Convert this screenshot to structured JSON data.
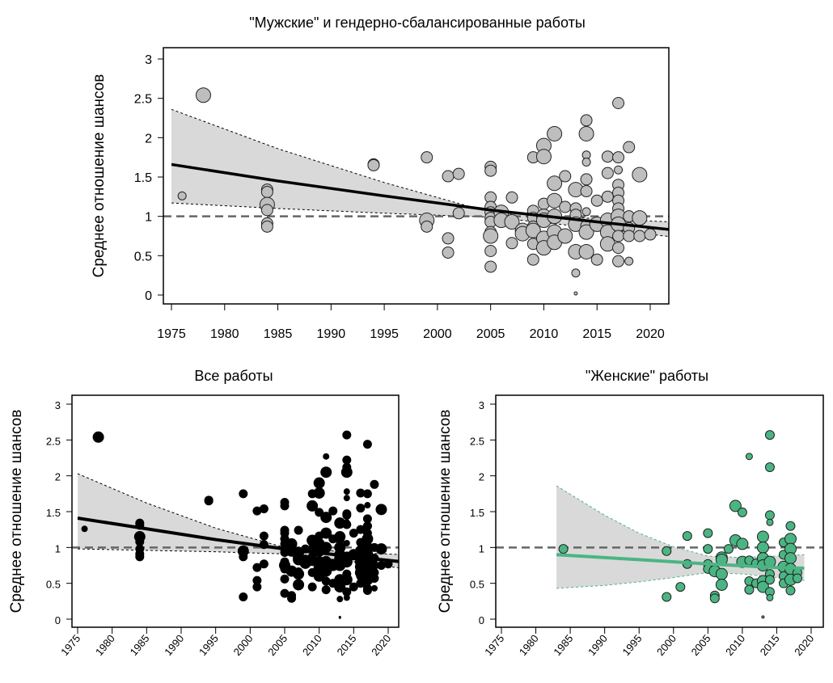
{
  "chart_data": [
    {
      "id": "male",
      "type": "scatter",
      "title": "\"Мужские\" и гендерно-сбалансированные работы",
      "xlabel": "",
      "ylabel": "Среднее отношение шансов",
      "xlim": [
        1974,
        2022
      ],
      "ylim": [
        -0.1,
        3.1
      ],
      "xticks": [
        "1975",
        "1980",
        "1985",
        "1990",
        "1995",
        "2000",
        "2005",
        "2010",
        "2015",
        "2020"
      ],
      "yticks": [
        "0",
        "0.5",
        "1",
        "1.5",
        "2",
        "2.5",
        "3"
      ],
      "reference_line": 1,
      "point_color": "#bebebe",
      "line_color": "#000000",
      "band_color": "#d9d9d9",
      "regression": {
        "x": [
          1975,
          1985,
          1995,
          2005,
          2015,
          2022
        ],
        "y": [
          1.66,
          1.45,
          1.26,
          1.08,
          0.93,
          0.83
        ]
      },
      "ci_upper": {
        "x": [
          1975,
          1985,
          1995,
          2005,
          2015,
          2022
        ],
        "y": [
          2.36,
          1.86,
          1.43,
          1.05,
          0.97,
          0.93
        ]
      },
      "ci_lower": {
        "x": [
          1975,
          1985,
          1995,
          2005,
          2015,
          2022
        ],
        "y": [
          1.17,
          1.1,
          1.04,
          0.99,
          0.85,
          0.74
        ]
      },
      "points": [
        [
          1976,
          1.26,
          1
        ],
        [
          1978,
          2.54,
          3
        ],
        [
          1984,
          1.34,
          2
        ],
        [
          1984,
          1.31,
          2
        ],
        [
          1984,
          1.15,
          3
        ],
        [
          1984,
          1.08,
          2
        ],
        [
          1984,
          0.91,
          2
        ],
        [
          1984,
          0.87,
          2
        ],
        [
          1994,
          1.66,
          2
        ],
        [
          1994,
          1.65,
          2
        ],
        [
          1999,
          1.75,
          2
        ],
        [
          1999,
          0.95,
          3
        ],
        [
          1999,
          0.87,
          2
        ],
        [
          2001,
          1.51,
          2
        ],
        [
          2001,
          0.72,
          2
        ],
        [
          2001,
          0.54,
          2
        ],
        [
          2002,
          1.54,
          2
        ],
        [
          2002,
          1.04,
          2
        ],
        [
          2005,
          1.63,
          2
        ],
        [
          2005,
          1.58,
          2
        ],
        [
          2005,
          1.24,
          2
        ],
        [
          2005,
          1.12,
          2
        ],
        [
          2005,
          1.05,
          2
        ],
        [
          2005,
          0.98,
          2
        ],
        [
          2005,
          0.93,
          2
        ],
        [
          2005,
          0.8,
          2
        ],
        [
          2005,
          0.75,
          3
        ],
        [
          2005,
          0.56,
          2
        ],
        [
          2005,
          0.36,
          2
        ],
        [
          2006,
          1.05,
          3
        ],
        [
          2006,
          0.95,
          3
        ],
        [
          2007,
          1.24,
          2
        ],
        [
          2007,
          0.93,
          3
        ],
        [
          2007,
          0.66,
          2
        ],
        [
          2008,
          0.82,
          3
        ],
        [
          2008,
          0.78,
          3
        ],
        [
          2009,
          1.75,
          2
        ],
        [
          2009,
          1.07,
          2
        ],
        [
          2009,
          0.98,
          2
        ],
        [
          2009,
          0.87,
          2
        ],
        [
          2009,
          0.82,
          3
        ],
        [
          2009,
          0.65,
          2
        ],
        [
          2009,
          0.45,
          2
        ],
        [
          2010,
          1.9,
          3
        ],
        [
          2010,
          1.76,
          3
        ],
        [
          2010,
          1.16,
          2
        ],
        [
          2010,
          1.0,
          3
        ],
        [
          2010,
          0.95,
          3
        ],
        [
          2010,
          0.72,
          3
        ],
        [
          2010,
          0.6,
          3
        ],
        [
          2011,
          2.05,
          3
        ],
        [
          2011,
          1.42,
          3
        ],
        [
          2011,
          1.2,
          3
        ],
        [
          2011,
          1.0,
          3
        ],
        [
          2011,
          0.8,
          3
        ],
        [
          2011,
          0.67,
          3
        ],
        [
          2012,
          1.51,
          2
        ],
        [
          2012,
          1.12,
          2
        ],
        [
          2012,
          0.75,
          3
        ],
        [
          2013,
          1.34,
          3
        ],
        [
          2013,
          1.1,
          2
        ],
        [
          2013,
          1.02,
          2
        ],
        [
          2013,
          0.9,
          3
        ],
        [
          2013,
          0.55,
          3
        ],
        [
          2013,
          0.28,
          1
        ],
        [
          2013,
          0.02,
          0
        ],
        [
          2014,
          2.22,
          2
        ],
        [
          2014,
          2.05,
          3
        ],
        [
          2014,
          1.78,
          1
        ],
        [
          2014,
          1.69,
          1
        ],
        [
          2014,
          1.47,
          2
        ],
        [
          2014,
          1.32,
          2
        ],
        [
          2014,
          1.06,
          1
        ],
        [
          2014,
          0.88,
          2
        ],
        [
          2014,
          0.8,
          3
        ],
        [
          2014,
          0.55,
          3
        ],
        [
          2015,
          1.2,
          2
        ],
        [
          2015,
          0.9,
          3
        ],
        [
          2015,
          0.45,
          2
        ],
        [
          2016,
          1.76,
          2
        ],
        [
          2016,
          1.55,
          2
        ],
        [
          2016,
          1.25,
          2
        ],
        [
          2016,
          0.95,
          3
        ],
        [
          2016,
          0.8,
          3
        ],
        [
          2016,
          0.65,
          3
        ],
        [
          2017,
          2.44,
          2
        ],
        [
          2017,
          1.75,
          2
        ],
        [
          2017,
          1.59,
          1
        ],
        [
          2017,
          1.4,
          2
        ],
        [
          2017,
          1.3,
          2
        ],
        [
          2017,
          1.2,
          2
        ],
        [
          2017,
          1.1,
          2
        ],
        [
          2017,
          1.0,
          3
        ],
        [
          2017,
          0.9,
          3
        ],
        [
          2017,
          0.75,
          2
        ],
        [
          2017,
          0.6,
          2
        ],
        [
          2017,
          0.43,
          2
        ],
        [
          2018,
          1.88,
          2
        ],
        [
          2018,
          1.0,
          2
        ],
        [
          2018,
          0.85,
          2
        ],
        [
          2018,
          0.75,
          2
        ],
        [
          2018,
          0.43,
          1
        ],
        [
          2019,
          1.53,
          3
        ],
        [
          2019,
          0.98,
          3
        ],
        [
          2019,
          0.75,
          2
        ],
        [
          2020,
          0.77,
          2
        ]
      ]
    },
    {
      "id": "all",
      "type": "scatter",
      "title": "Все работы",
      "xlabel": "",
      "ylabel": "Среднее отношение шансов",
      "xlim": [
        1974,
        2022
      ],
      "ylim": [
        -0.1,
        3.1
      ],
      "xticks": [
        "1975",
        "1980",
        "1985",
        "1990",
        "1995",
        "2000",
        "2005",
        "2010",
        "2015",
        "2020"
      ],
      "yticks": [
        "0",
        "0.5",
        "1",
        "1.5",
        "2",
        "2.5",
        "3"
      ],
      "reference_line": 1,
      "point_color": "#000000",
      "line_color": "#000000",
      "band_color": "#d9d9d9",
      "points_combine": [
        "male",
        "female"
      ],
      "regression": {
        "x": [
          1975,
          1985,
          1995,
          2005,
          2015,
          2022
        ],
        "y": [
          1.41,
          1.26,
          1.11,
          0.98,
          0.87,
          0.8
        ]
      },
      "ci_upper": {
        "x": [
          1975,
          1985,
          1995,
          2005,
          2015,
          2022
        ],
        "y": [
          2.03,
          1.62,
          1.27,
          1.0,
          0.93,
          0.9
        ]
      },
      "ci_lower": {
        "x": [
          1975,
          1985,
          1995,
          2005,
          2015,
          2022
        ],
        "y": [
          0.98,
          0.96,
          0.94,
          0.91,
          0.8,
          0.71
        ]
      }
    },
    {
      "id": "female",
      "type": "scatter",
      "title": "\"Женские\" работы",
      "xlabel": "",
      "ylabel": "Среднее отношение шансов",
      "xlim": [
        1974,
        2022
      ],
      "ylim": [
        -0.1,
        3.1
      ],
      "xticks": [
        "1975",
        "1980",
        "1985",
        "1990",
        "1995",
        "2000",
        "2005",
        "2010",
        "2015",
        "2020"
      ],
      "yticks": [
        "0",
        "0.5",
        "1",
        "1.5",
        "2",
        "2.5",
        "3"
      ],
      "reference_line": 1,
      "point_color": "#4ab583",
      "line_color": "#4ab583",
      "band_color": "#d9d9d9",
      "regression": {
        "x": [
          1983,
          1995,
          2005,
          2015,
          2019
        ],
        "y": [
          0.9,
          0.83,
          0.77,
          0.72,
          0.71
        ]
      },
      "ci_upper": {
        "x": [
          1983,
          1990,
          1995,
          2000,
          2005,
          2010,
          2015,
          2019
        ],
        "y": [
          1.86,
          1.45,
          1.2,
          1.01,
          0.88,
          0.86,
          0.88,
          0.9
        ]
      },
      "ci_lower": {
        "x": [
          1983,
          1990,
          1995,
          2000,
          2005,
          2010,
          2015,
          2019
        ],
        "y": [
          0.43,
          0.47,
          0.52,
          0.58,
          0.65,
          0.63,
          0.58,
          0.54
        ]
      },
      "points": [
        [
          1984,
          0.98,
          2
        ],
        [
          1999,
          0.95,
          2
        ],
        [
          1999,
          0.31,
          2
        ],
        [
          2001,
          0.45,
          2
        ],
        [
          2002,
          1.16,
          2
        ],
        [
          2002,
          0.77,
          2
        ],
        [
          2005,
          1.2,
          2
        ],
        [
          2005,
          0.98,
          2
        ],
        [
          2005,
          0.77,
          2
        ],
        [
          2005,
          0.7,
          2
        ],
        [
          2006,
          0.67,
          3
        ],
        [
          2006,
          0.33,
          2
        ],
        [
          2006,
          0.29,
          2
        ],
        [
          2007,
          0.86,
          3
        ],
        [
          2007,
          0.83,
          3
        ],
        [
          2007,
          0.63,
          3
        ],
        [
          2007,
          0.48,
          3
        ],
        [
          2008,
          0.98,
          2
        ],
        [
          2009,
          1.58,
          3
        ],
        [
          2009,
          1.1,
          3
        ],
        [
          2010,
          1.49,
          2
        ],
        [
          2010,
          1.05,
          3
        ],
        [
          2010,
          0.8,
          3
        ],
        [
          2011,
          2.27,
          1
        ],
        [
          2011,
          0.82,
          2
        ],
        [
          2011,
          0.53,
          2
        ],
        [
          2011,
          0.41,
          2
        ],
        [
          2012,
          0.78,
          2
        ],
        [
          2012,
          0.5,
          2
        ],
        [
          2013,
          1.15,
          3
        ],
        [
          2013,
          1.0,
          3
        ],
        [
          2013,
          0.85,
          3
        ],
        [
          2013,
          0.75,
          3
        ],
        [
          2013,
          0.53,
          3
        ],
        [
          2013,
          0.45,
          3
        ],
        [
          2013,
          0.03,
          0
        ],
        [
          2014,
          2.57,
          2
        ],
        [
          2014,
          2.12,
          2
        ],
        [
          2014,
          1.45,
          2
        ],
        [
          2014,
          1.35,
          1
        ],
        [
          2014,
          0.8,
          3
        ],
        [
          2014,
          0.63,
          2
        ],
        [
          2014,
          0.55,
          2
        ],
        [
          2014,
          0.38,
          2
        ],
        [
          2014,
          0.3,
          1
        ],
        [
          2016,
          1.07,
          2
        ],
        [
          2016,
          0.9,
          2
        ],
        [
          2016,
          0.73,
          3
        ],
        [
          2016,
          0.6,
          2
        ],
        [
          2016,
          0.5,
          2
        ],
        [
          2017,
          1.3,
          2
        ],
        [
          2017,
          1.12,
          3
        ],
        [
          2017,
          0.98,
          3
        ],
        [
          2017,
          0.85,
          3
        ],
        [
          2017,
          0.7,
          3
        ],
        [
          2017,
          0.55,
          3
        ],
        [
          2017,
          0.4,
          2
        ],
        [
          2018,
          0.65,
          2
        ],
        [
          2018,
          0.57,
          2
        ]
      ]
    }
  ]
}
